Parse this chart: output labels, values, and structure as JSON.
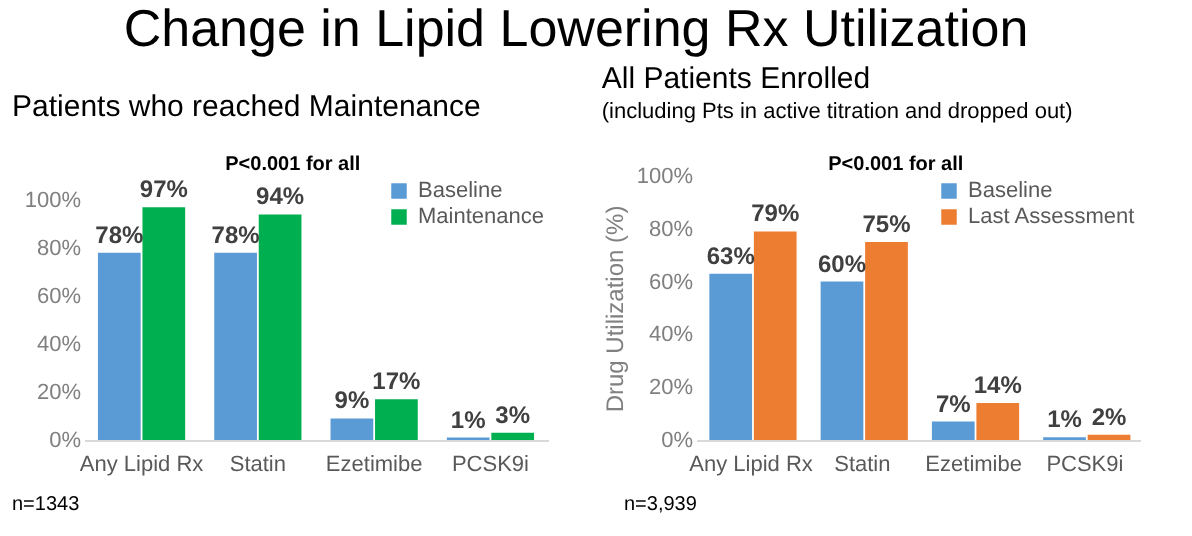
{
  "chart_data": [
    {
      "type": "other",
      "title": "Change in Lipid Lowering Rx Utilization"
    },
    {
      "type": "bar",
      "title": "Patients who reached Maintenance",
      "categories": [
        "Any Lipid Rx",
        "Statin",
        "Ezetimibe",
        "PCSK9i"
      ],
      "series": [
        {
          "name": "Baseline",
          "color": "#5b9bd5",
          "values": [
            78,
            78,
            9,
            1
          ],
          "value_labels": [
            "78%",
            "78%",
            "9%",
            "1%"
          ]
        },
        {
          "name": "Maintenance",
          "color": "#00b050",
          "values": [
            97,
            94,
            17,
            3
          ],
          "value_labels": [
            "97%",
            "94%",
            "17%",
            "3%"
          ]
        }
      ],
      "ylim": [
        0,
        110
      ],
      "yticks": [
        {
          "value": 0,
          "label": "0%"
        },
        {
          "value": 20,
          "label": "20%"
        },
        {
          "value": 40,
          "label": "40%"
        },
        {
          "value": 60,
          "label": "60%"
        },
        {
          "value": 80,
          "label": "80%"
        },
        {
          "value": 100,
          "label": "100%"
        }
      ],
      "grid": false,
      "legend": "top right",
      "annotations": [
        "P<0.001 for all",
        "n=1343"
      ]
    },
    {
      "type": "bar",
      "title": "All Patients Enrolled",
      "subtitle": "(including Pts in active titration and dropped out)",
      "ylabel": "Drug Utilization (%)",
      "categories": [
        "Any Lipid Rx",
        "Statin",
        "Ezetimibe",
        "PCSK9i"
      ],
      "series": [
        {
          "name": "Baseline",
          "color": "#5b9bd5",
          "values": [
            63,
            60,
            7,
            1
          ],
          "value_labels": [
            "63%",
            "60%",
            "7%",
            "1%"
          ]
        },
        {
          "name": "Last Assessment",
          "color": "#ed7d31",
          "values": [
            79,
            75,
            14,
            2
          ],
          "value_labels": [
            "79%",
            "75%",
            "14%",
            "2%"
          ]
        }
      ],
      "ylim": [
        0,
        100
      ],
      "yticks": [
        {
          "value": 0,
          "label": "0%"
        },
        {
          "value": 20,
          "label": "20%"
        },
        {
          "value": 40,
          "label": "40%"
        },
        {
          "value": 60,
          "label": "60%"
        },
        {
          "value": 80,
          "label": "80%"
        },
        {
          "value": 100,
          "label": "100%"
        }
      ],
      "grid": false,
      "legend": "top right",
      "annotations": [
        "P<0.001 for all",
        "n=3,939"
      ]
    }
  ]
}
